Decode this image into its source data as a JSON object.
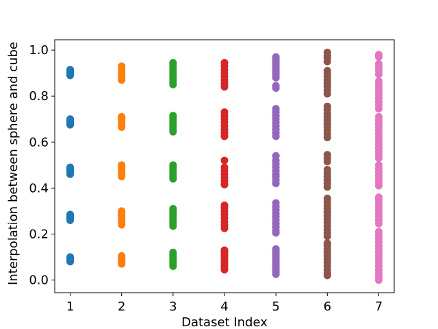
{
  "chart_data": {
    "type": "scatter",
    "title": "",
    "xlabel": "Dataset Index",
    "ylabel": "Interpolation between sphere and cube",
    "xlim": [
      0.7,
      7.3
    ],
    "ylim": [
      -0.055,
      1.045
    ],
    "xticks": [
      1,
      2,
      3,
      4,
      5,
      6,
      7
    ],
    "yticks": [
      0.0,
      0.2,
      0.4,
      0.6,
      0.8,
      1.0
    ],
    "ytick_labels": [
      "0.0",
      "0.2",
      "0.4",
      "0.6",
      "0.8",
      "1.0"
    ],
    "grid": false,
    "legend": "none",
    "series": [
      {
        "x": 1,
        "color": "#1f77b4",
        "y": [
          0.08,
          0.085,
          0.09,
          0.095,
          0.1,
          0.26,
          0.265,
          0.27,
          0.275,
          0.28,
          0.285,
          0.46,
          0.465,
          0.47,
          0.475,
          0.48,
          0.485,
          0.49,
          0.675,
          0.68,
          0.685,
          0.69,
          0.695,
          0.7,
          0.89,
          0.895,
          0.9,
          0.905,
          0.91,
          0.915
        ]
      },
      {
        "x": 2,
        "color": "#ff7f0e",
        "y": [
          0.07,
          0.075,
          0.08,
          0.085,
          0.09,
          0.095,
          0.1,
          0.105,
          0.24,
          0.25,
          0.26,
          0.27,
          0.28,
          0.29,
          0.3,
          0.45,
          0.46,
          0.47,
          0.48,
          0.49,
          0.5,
          0.665,
          0.675,
          0.685,
          0.695,
          0.705,
          0.71,
          0.87,
          0.88,
          0.89,
          0.9,
          0.91,
          0.92,
          0.93
        ]
      },
      {
        "x": 3,
        "color": "#2ca02c",
        "y": [
          0.06,
          0.07,
          0.08,
          0.09,
          0.1,
          0.11,
          0.12,
          0.235,
          0.245,
          0.255,
          0.265,
          0.275,
          0.285,
          0.295,
          0.305,
          0.31,
          0.44,
          0.45,
          0.46,
          0.47,
          0.48,
          0.49,
          0.5,
          0.645,
          0.655,
          0.665,
          0.675,
          0.685,
          0.695,
          0.705,
          0.715,
          0.85,
          0.86,
          0.87,
          0.88,
          0.89,
          0.9,
          0.91,
          0.92,
          0.93,
          0.94,
          0.945
        ]
      },
      {
        "x": 4,
        "color": "#d62728",
        "y": [
          0.045,
          0.055,
          0.065,
          0.075,
          0.085,
          0.095,
          0.105,
          0.115,
          0.125,
          0.13,
          0.225,
          0.24,
          0.255,
          0.27,
          0.285,
          0.3,
          0.315,
          0.325,
          0.415,
          0.43,
          0.445,
          0.46,
          0.475,
          0.49,
          0.52,
          0.625,
          0.64,
          0.655,
          0.67,
          0.685,
          0.7,
          0.715,
          0.73,
          0.84,
          0.855,
          0.87,
          0.885,
          0.9,
          0.915,
          0.93,
          0.945
        ]
      },
      {
        "x": 5,
        "color": "#9467bd",
        "y": [
          0.025,
          0.035,
          0.045,
          0.055,
          0.065,
          0.075,
          0.085,
          0.095,
          0.105,
          0.115,
          0.125,
          0.135,
          0.205,
          0.215,
          0.23,
          0.245,
          0.26,
          0.275,
          0.29,
          0.305,
          0.32,
          0.335,
          0.42,
          0.435,
          0.45,
          0.46,
          0.475,
          0.49,
          0.505,
          0.52,
          0.54,
          0.625,
          0.64,
          0.655,
          0.67,
          0.685,
          0.7,
          0.715,
          0.73,
          0.745,
          0.835,
          0.845,
          0.88,
          0.89,
          0.9,
          0.91,
          0.92,
          0.93,
          0.94,
          0.95,
          0.96,
          0.97
        ]
      },
      {
        "x": 6,
        "color": "#8c564b",
        "y": [
          0.02,
          0.03,
          0.045,
          0.06,
          0.075,
          0.09,
          0.105,
          0.12,
          0.135,
          0.15,
          0.16,
          0.19,
          0.205,
          0.22,
          0.235,
          0.25,
          0.265,
          0.28,
          0.295,
          0.31,
          0.325,
          0.34,
          0.355,
          0.405,
          0.42,
          0.435,
          0.45,
          0.465,
          0.48,
          0.515,
          0.53,
          0.545,
          0.62,
          0.635,
          0.65,
          0.665,
          0.68,
          0.695,
          0.71,
          0.725,
          0.74,
          0.755,
          0.81,
          0.825,
          0.84,
          0.855,
          0.87,
          0.885,
          0.9,
          0.91,
          0.95,
          0.965,
          0.975,
          0.99
        ]
      },
      {
        "x": 7,
        "color": "#e377c2",
        "y": [
          0.0,
          0.015,
          0.03,
          0.045,
          0.06,
          0.075,
          0.09,
          0.105,
          0.12,
          0.135,
          0.15,
          0.165,
          0.18,
          0.195,
          0.21,
          0.245,
          0.26,
          0.275,
          0.29,
          0.305,
          0.32,
          0.335,
          0.35,
          0.36,
          0.41,
          0.425,
          0.44,
          0.455,
          0.47,
          0.485,
          0.5,
          0.53,
          0.545,
          0.56,
          0.575,
          0.59,
          0.605,
          0.62,
          0.635,
          0.65,
          0.665,
          0.68,
          0.695,
          0.71,
          0.745,
          0.76,
          0.775,
          0.79,
          0.805,
          0.82,
          0.835,
          0.85,
          0.865,
          0.895,
          0.91,
          0.925,
          0.94,
          0.97,
          0.98
        ]
      }
    ]
  }
}
